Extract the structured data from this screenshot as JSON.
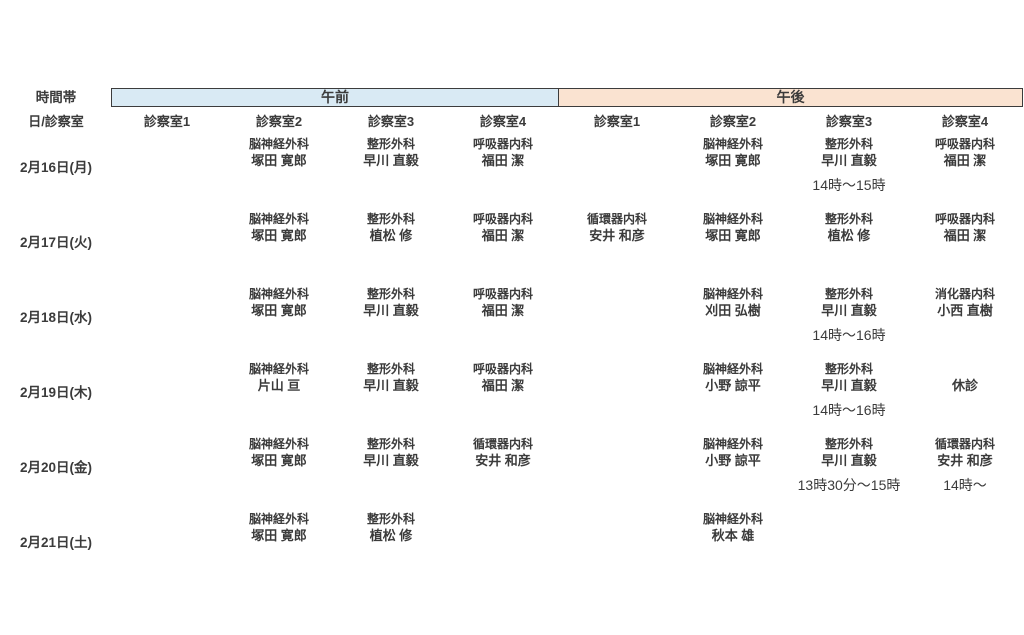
{
  "header": {
    "time_band_label": "時間帯",
    "day_room_label": "日/診察室",
    "sections": [
      {
        "label": "午前",
        "rooms": [
          "診察室1",
          "診察室2",
          "診察室3",
          "診察室4"
        ]
      },
      {
        "label": "午後",
        "rooms": [
          "診察室1",
          "診察室2",
          "診察室3",
          "診察室4"
        ]
      }
    ]
  },
  "colors": {
    "am_band": "#d9eaf4",
    "pm_band": "#fae3d1",
    "band_border": "#3c3c3c",
    "text": "#3b3b3b",
    "background": "#ffffff"
  },
  "schedule": {
    "rows": [
      {
        "date": "2月16日(月)",
        "cells": [
          null,
          {
            "specialty": "脳神経外科",
            "doctor": "塚田 寛郎"
          },
          {
            "specialty": "整形外科",
            "doctor": "早川 直毅"
          },
          {
            "specialty": "呼吸器内科",
            "doctor": "福田 潔"
          },
          null,
          {
            "specialty": "脳神経外科",
            "doctor": "塚田 寛郎"
          },
          {
            "specialty": "整形外科",
            "doctor": "早川 直毅",
            "time": "14時〜15時"
          },
          {
            "specialty": "呼吸器内科",
            "doctor": "福田 潔"
          }
        ]
      },
      {
        "date": "2月17日(火)",
        "cells": [
          null,
          {
            "specialty": "脳神経外科",
            "doctor": "塚田 寛郎"
          },
          {
            "specialty": "整形外科",
            "doctor": "植松 修"
          },
          {
            "specialty": "呼吸器内科",
            "doctor": "福田 潔"
          },
          {
            "specialty": "循環器内科",
            "doctor": "安井 和彦"
          },
          {
            "specialty": "脳神経外科",
            "doctor": "塚田 寛郎"
          },
          {
            "specialty": "整形外科",
            "doctor": "植松 修"
          },
          {
            "specialty": "呼吸器内科",
            "doctor": "福田 潔"
          }
        ]
      },
      {
        "date": "2月18日(水)",
        "cells": [
          null,
          {
            "specialty": "脳神経外科",
            "doctor": "塚田 寛郎"
          },
          {
            "specialty": "整形外科",
            "doctor": "早川 直毅"
          },
          {
            "specialty": "呼吸器内科",
            "doctor": "福田 潔"
          },
          null,
          {
            "specialty": "脳神経外科",
            "doctor": "刈田 弘樹"
          },
          {
            "specialty": "整形外科",
            "doctor": "早川 直毅",
            "time": "14時〜16時"
          },
          {
            "specialty": "消化器内科",
            "doctor": "小西 直樹"
          }
        ]
      },
      {
        "date": "2月19日(木)",
        "cells": [
          null,
          {
            "specialty": "脳神経外科",
            "doctor": "片山 亘"
          },
          {
            "specialty": "整形外科",
            "doctor": "早川 直毅"
          },
          {
            "specialty": "呼吸器内科",
            "doctor": "福田 潔"
          },
          null,
          {
            "specialty": "脳神経外科",
            "doctor": "小野 諒平"
          },
          {
            "specialty": "整形外科",
            "doctor": "早川 直毅",
            "time": "14時〜16時"
          },
          {
            "doctor": "休診"
          }
        ]
      },
      {
        "date": "2月20日(金)",
        "cells": [
          null,
          {
            "specialty": "脳神経外科",
            "doctor": "塚田 寛郎"
          },
          {
            "specialty": "整形外科",
            "doctor": "早川 直毅"
          },
          {
            "specialty": "循環器内科",
            "doctor": "安井 和彦"
          },
          null,
          {
            "specialty": "脳神経外科",
            "doctor": "小野 諒平"
          },
          {
            "specialty": "整形外科",
            "doctor": "早川 直毅",
            "time": "13時30分〜15時"
          },
          {
            "specialty": "循環器内科",
            "doctor": "安井 和彦",
            "time": "14時〜"
          }
        ]
      },
      {
        "date": "2月21日(土)",
        "cells": [
          null,
          {
            "specialty": "脳神経外科",
            "doctor": "塚田 寛郎"
          },
          {
            "specialty": "整形外科",
            "doctor": "植松 修"
          },
          null,
          null,
          {
            "specialty": "脳神経外科",
            "doctor": "秋本 雄"
          },
          null,
          null
        ]
      }
    ]
  }
}
